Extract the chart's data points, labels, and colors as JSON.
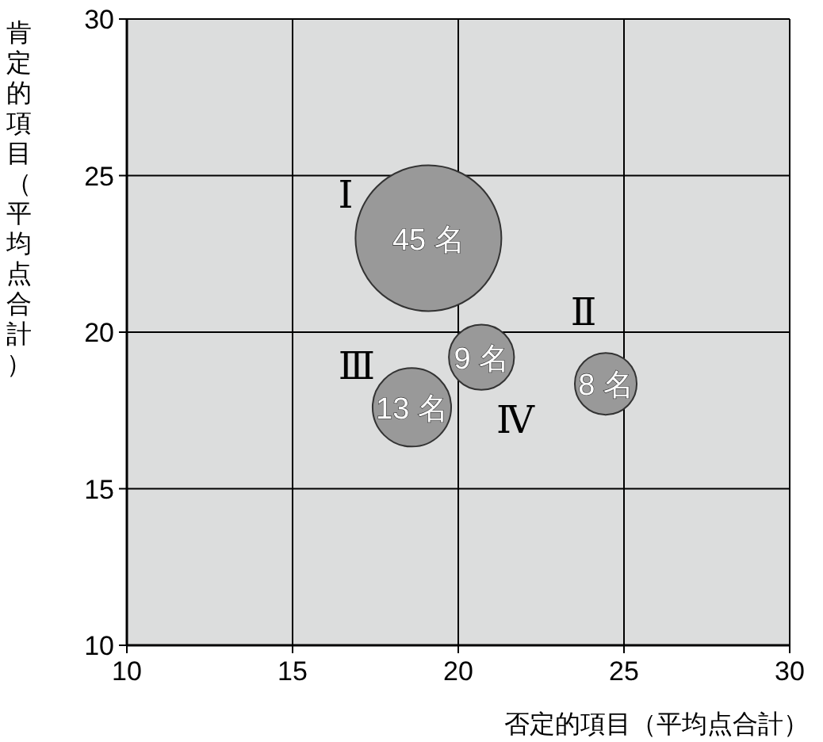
{
  "chart_data": {
    "type": "bubble",
    "xlabel": "否定的項目（平均点合計）",
    "ylabel": "肯定的項目（平均点合計）",
    "x": [
      19.1,
      20.7,
      18.6,
      24.45
    ],
    "values": [
      23,
      19.2,
      17.6,
      18.35
    ],
    "sizes": [
      1,
      0.2,
      0.29,
      0.18
    ],
    "color": "#999999",
    "xlim": [
      10,
      30
    ],
    "ylim": [
      10,
      30
    ],
    "xticks": [
      10,
      15,
      20,
      25,
      30
    ],
    "yticks": [
      10,
      15,
      20,
      25,
      30
    ],
    "grid": true,
    "annotations": [
      {
        "text": "45 名",
        "x": 19.1,
        "y": 23
      },
      {
        "text": "9 名",
        "x": 20.7,
        "y": 19.2
      },
      {
        "text": "13 名",
        "x": 18.6,
        "y": 17.6
      },
      {
        "text": "8 名",
        "x": 24.45,
        "y": 18.35
      },
      "Ⅰ",
      "Ⅱ",
      "Ⅲ",
      "Ⅳ"
    ]
  }
}
